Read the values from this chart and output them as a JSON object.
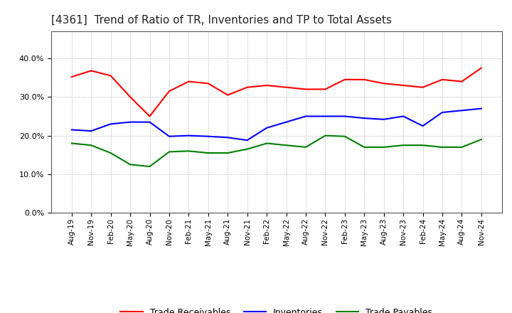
{
  "title": "[4361]  Trend of Ratio of TR, Inventories and TP to Total Assets",
  "x_labels": [
    "Aug-19",
    "Nov-19",
    "Feb-20",
    "May-20",
    "Aug-20",
    "Nov-20",
    "Feb-21",
    "May-21",
    "Aug-21",
    "Nov-21",
    "Feb-22",
    "May-22",
    "Aug-22",
    "Nov-22",
    "Feb-23",
    "May-23",
    "Aug-23",
    "Nov-23",
    "Feb-24",
    "May-24",
    "Aug-24",
    "Nov-24"
  ],
  "trade_receivables": [
    35.2,
    36.8,
    35.5,
    30.0,
    25.0,
    31.5,
    34.0,
    33.5,
    30.5,
    32.5,
    33.0,
    32.5,
    32.0,
    32.0,
    34.5,
    34.5,
    33.5,
    33.0,
    32.5,
    34.5,
    34.0,
    37.5
  ],
  "inventories": [
    21.5,
    21.2,
    23.0,
    23.5,
    23.5,
    19.8,
    20.0,
    19.8,
    19.5,
    18.8,
    22.0,
    23.5,
    25.0,
    25.0,
    25.0,
    24.5,
    24.2,
    25.0,
    22.5,
    26.0,
    26.5,
    27.0
  ],
  "trade_payables": [
    18.0,
    17.5,
    15.5,
    12.5,
    12.0,
    15.8,
    16.0,
    15.5,
    15.5,
    16.5,
    18.0,
    17.5,
    17.0,
    20.0,
    19.8,
    17.0,
    17.0,
    17.5,
    17.5,
    17.0,
    17.0,
    19.0
  ],
  "tr_color": "#ff0000",
  "inv_color": "#0000ff",
  "tp_color": "#008000",
  "ylim": [
    0,
    47
  ],
  "yticks": [
    0,
    10,
    20,
    30,
    40
  ],
  "background_color": "#ffffff",
  "plot_bg_color": "#ffffff",
  "grid_color": "#999999"
}
